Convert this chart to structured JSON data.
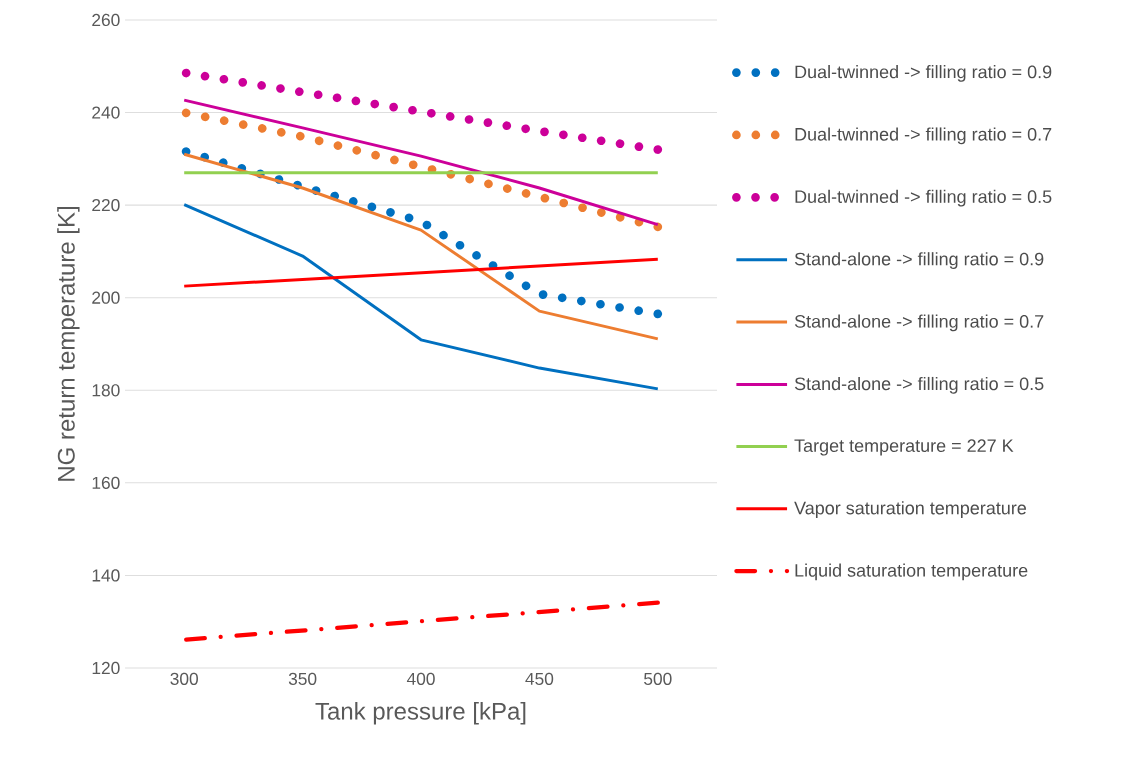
{
  "chart_data": {
    "type": "line",
    "xlabel": "Tank pressure [kPa]",
    "ylabel": "NG return temperature [K]",
    "xlim": [
      275,
      525
    ],
    "xticks": [
      300,
      350,
      400,
      450,
      500
    ],
    "ylim": [
      120,
      260
    ],
    "yticks": [
      120,
      140,
      160,
      180,
      200,
      220,
      240,
      260
    ],
    "grid": "y",
    "legend": "right",
    "series": [
      {
        "name": "Dual-twinned -> filling ratio = 0.9",
        "color": "#0070c0",
        "line_style": "dotted",
        "x": [
          300,
          350,
          400,
          450,
          500
        ],
        "values": [
          231.7,
          224,
          216.5,
          200.8,
          196.5
        ]
      },
      {
        "name": "Dual-twinned -> filling ratio = 0.7",
        "color": "#ed7d31",
        "line_style": "dotted",
        "x": [
          300,
          350,
          400,
          450,
          500
        ],
        "values": [
          240,
          234.8,
          228.3,
          221.8,
          215.3
        ]
      },
      {
        "name": "Dual-twinned -> filling ratio = 0.5",
        "color": "#cc0099",
        "line_style": "dotted",
        "x": [
          300,
          350,
          400,
          450,
          500
        ],
        "values": [
          248.6,
          244.4,
          240.2,
          236,
          232
        ]
      },
      {
        "name": "Stand-alone -> filling ratio = 0.9",
        "color": "#0070c0",
        "line_style": "solid",
        "x": [
          300,
          350,
          400,
          450,
          500
        ],
        "values": [
          220.1,
          209,
          190.9,
          184.8,
          180.3
        ]
      },
      {
        "name": "Stand-alone -> filling ratio = 0.7",
        "color": "#ed7d31",
        "line_style": "solid",
        "x": [
          300,
          350,
          400,
          450,
          500
        ],
        "values": [
          231,
          223.7,
          214.6,
          197.1,
          191.1
        ]
      },
      {
        "name": "Stand-alone -> filling ratio = 0.5",
        "color": "#cc0099",
        "line_style": "solid",
        "x": [
          300,
          350,
          400,
          450,
          500
        ],
        "values": [
          242.7,
          236.7,
          230.6,
          223.7,
          215.8
        ]
      },
      {
        "name": "Target temperature = 227 K",
        "color": "#92d050",
        "line_style": "solid",
        "x": [
          300,
          500
        ],
        "values": [
          227,
          227
        ]
      },
      {
        "name": "Vapor saturation temperature",
        "color": "#ff0000",
        "line_style": "solid",
        "x": [
          300,
          500
        ],
        "values": [
          202.5,
          208.3
        ]
      },
      {
        "name": "Liquid saturation temperature",
        "color": "#ff0000",
        "line_style": "dashdot",
        "x": [
          300,
          500
        ],
        "values": [
          126.1,
          134.1
        ]
      }
    ]
  }
}
